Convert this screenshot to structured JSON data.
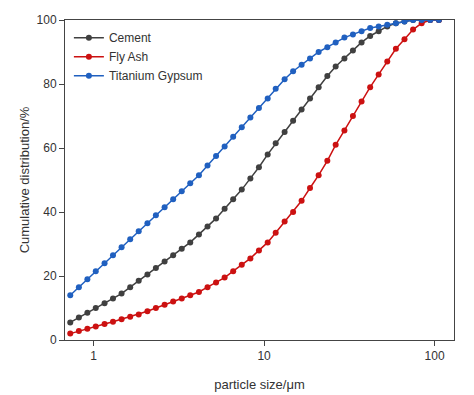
{
  "chart_data": {
    "type": "line",
    "x_label": "particle size/μm",
    "y_label": "Cumulative distribution/%",
    "log": "x",
    "grid": false,
    "legend": "upper left",
    "xlim": [
      0.68,
      130
    ],
    "xticks": [
      1,
      10,
      100
    ],
    "ylim": [
      0,
      100
    ],
    "yticks": [
      0,
      20,
      40,
      60,
      80,
      100
    ],
    "x": [
      0.73,
      0.82,
      0.92,
      1.03,
      1.16,
      1.3,
      1.46,
      1.64,
      1.84,
      2.07,
      2.32,
      2.61,
      2.93,
      3.29,
      3.69,
      4.15,
      4.66,
      5.23,
      5.87,
      6.59,
      7.4,
      8.31,
      9.33,
      10.5,
      11.7,
      13.2,
      14.8,
      16.6,
      18.6,
      20.9,
      23.5,
      26.3,
      29.6,
      33.2,
      37.3,
      41.9,
      47.0,
      52.8,
      59.3,
      66.6,
      74.8,
      84.0,
      94.3,
      106
    ],
    "series": [
      {
        "name": "Cement",
        "color": "#404040",
        "marker": "circle",
        "line_style": "solid",
        "values": [
          5.5,
          7.0,
          8.5,
          10.0,
          11.5,
          13.0,
          14.5,
          16.5,
          18.5,
          20.5,
          22.5,
          24.5,
          26.5,
          28.5,
          30.5,
          33.0,
          35.5,
          38.0,
          41.0,
          44.0,
          47.0,
          50.5,
          54.0,
          58.0,
          61.5,
          65.0,
          68.5,
          72.0,
          75.5,
          79.0,
          82.5,
          85.5,
          88.0,
          90.5,
          93.0,
          95.0,
          96.5,
          98.0,
          99.0,
          99.5,
          100,
          100,
          100,
          100
        ]
      },
      {
        "name": "Fly Ash",
        "color": "#cc1111",
        "marker": "circle",
        "line_style": "solid",
        "values": [
          2.0,
          2.8,
          3.5,
          4.2,
          5.0,
          5.7,
          6.5,
          7.3,
          8.0,
          9.0,
          10.0,
          11.0,
          12.0,
          13.0,
          14.0,
          15.0,
          16.5,
          18.0,
          19.5,
          21.5,
          23.5,
          25.5,
          28.0,
          30.5,
          33.5,
          37.0,
          40.0,
          43.5,
          47.5,
          51.5,
          56.0,
          61.0,
          65.5,
          70.0,
          74.5,
          79.0,
          83.0,
          87.0,
          91.0,
          94.0,
          97.0,
          99.0,
          100,
          100
        ]
      },
      {
        "name": "Titanium Gypsum",
        "color": "#2060c0",
        "marker": "circle",
        "line_style": "solid",
        "values": [
          14.0,
          16.5,
          19.0,
          21.5,
          24.0,
          26.5,
          29.0,
          31.5,
          34.0,
          36.5,
          39.0,
          41.5,
          44.0,
          46.5,
          49.0,
          51.5,
          54.5,
          57.5,
          60.5,
          63.5,
          66.5,
          69.5,
          72.5,
          75.5,
          78.5,
          81.5,
          84.0,
          86.0,
          88.0,
          90.0,
          91.5,
          93.0,
          94.5,
          95.5,
          96.5,
          97.5,
          98.0,
          98.5,
          99.0,
          99.5,
          100,
          100,
          100,
          100
        ]
      }
    ]
  }
}
